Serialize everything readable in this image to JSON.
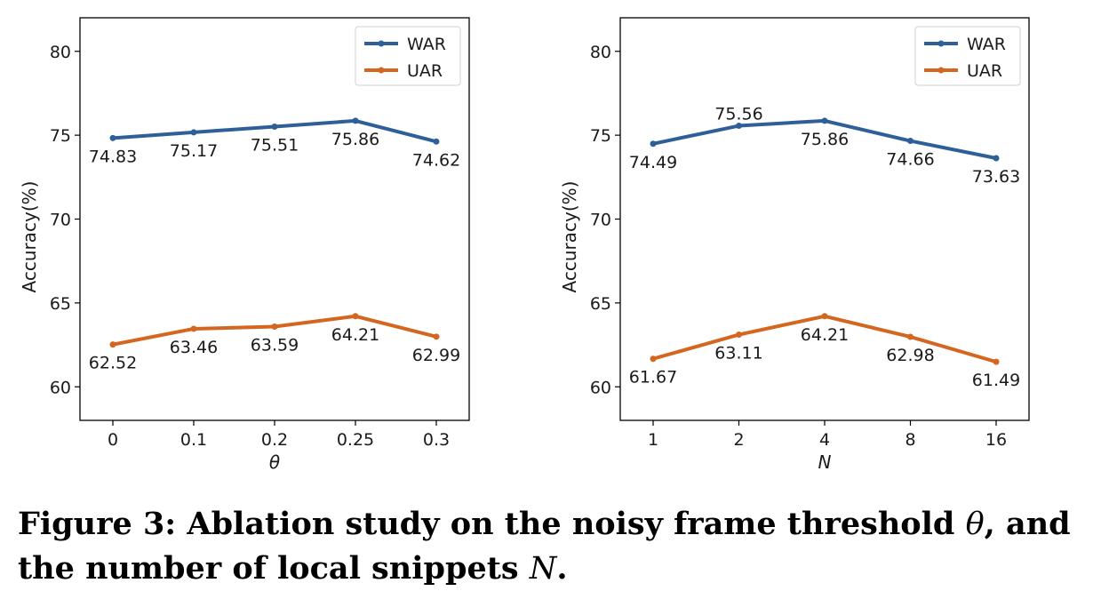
{
  "chart_data": [
    {
      "type": "line",
      "xlabel": "θ",
      "ylabel": "Accuracy(%)",
      "categories": [
        "0",
        "0.1",
        "0.2",
        "0.25",
        "0.3"
      ],
      "ylim": [
        58,
        82
      ],
      "yticks": [
        60,
        65,
        70,
        75,
        80
      ],
      "grid": false,
      "legend": "top-right",
      "series": [
        {
          "name": "WAR",
          "color": "#2f5f98",
          "values": [
            74.83,
            75.17,
            75.51,
            75.86,
            74.62
          ],
          "labels": [
            "74.83",
            "75.17",
            "75.51",
            "75.86",
            "74.62"
          ]
        },
        {
          "name": "UAR",
          "color": "#d4661f",
          "values": [
            62.52,
            63.46,
            63.59,
            64.21,
            62.99
          ],
          "labels": [
            "62.52",
            "63.46",
            "63.59",
            "64.21",
            "62.99"
          ]
        }
      ]
    },
    {
      "type": "line",
      "xlabel": "N",
      "ylabel": "Accuracy(%)",
      "categories": [
        "1",
        "2",
        "4",
        "8",
        "16"
      ],
      "ylim": [
        58,
        82
      ],
      "yticks": [
        60,
        65,
        70,
        75,
        80
      ],
      "grid": false,
      "legend": "top-right",
      "series": [
        {
          "name": "WAR",
          "color": "#2f5f98",
          "values": [
            74.49,
            75.56,
            75.86,
            74.66,
            73.63
          ],
          "labels": [
            "74.49",
            "75.56",
            "75.86",
            "74.66",
            "73.63"
          ]
        },
        {
          "name": "UAR",
          "color": "#d4661f",
          "values": [
            61.67,
            63.11,
            64.21,
            62.98,
            61.49
          ],
          "labels": [
            "61.67",
            "63.11",
            "64.21",
            "62.98",
            "61.49"
          ]
        }
      ]
    }
  ],
  "caption": {
    "part1": "Figure 3: Ablation study on the noisy frame threshold ",
    "theta": "θ",
    "part2": ", and the number of local snippets ",
    "n": "N",
    "part3": "."
  }
}
